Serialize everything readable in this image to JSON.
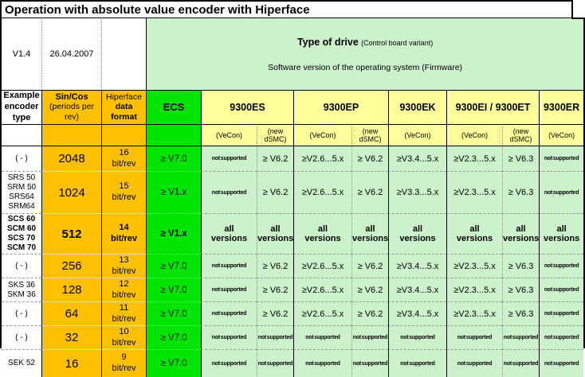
{
  "title": "Operation with absolute value encoder with Hiperface",
  "meta": {
    "version": "V1.4",
    "date": "26.04.2007"
  },
  "drive_header": {
    "title": "Type of drive",
    "variant": "(Control board variant)",
    "firmware": "Software version of the operating system (Firmware)"
  },
  "columns": {
    "encoder": "Example\nencoder\ntype",
    "sincos_title": "Sin/Cos",
    "sincos_sub": "(periods per\nrev)",
    "hiperface_title": "Hiperface",
    "hiperface_sub": "data\nformat"
  },
  "drives": [
    {
      "label": "ECS"
    },
    {
      "label": "9300ES"
    },
    {
      "label": "9300EP"
    },
    {
      "label": "9300EK"
    },
    {
      "label": "9300EI / 9300ET"
    },
    {
      "label": "9300ER"
    }
  ],
  "subheads": [
    "(VeCon)",
    "(new\ndSMC)",
    "(VeCon)",
    "(new\ndSMC)",
    "(VeCon)",
    "(VeCon)",
    "(new\ndSMC)",
    "(VeCon)"
  ],
  "labels": {
    "not_supported": "not supported",
    "all_versions": "all\nversions"
  },
  "colors": {
    "orange": "#FFC000",
    "bright_green": "#00E400",
    "pale_yellow": "#FFFF9C",
    "pale_green": "#CCF2CC"
  },
  "rows": [
    {
      "encoder": "( - )",
      "periods": "2048",
      "format": "16\nbit/rev",
      "bold": false,
      "values": [
        "≥ V7.0",
        "not supported",
        "≥ V6.2",
        "≥V2.6...5.x",
        "≥ V6.2",
        "≥V3.4...5.x",
        "≥V2.3...5.x",
        "≥ V6.3",
        "not supported"
      ]
    },
    {
      "encoder": "SRS 50\nSRM 50\nSRS64\nSRM64",
      "periods": "1024",
      "format": "15\nbit/rev",
      "bold": false,
      "values": [
        "≥ V1.x",
        "not supported",
        "≥ V6.2",
        "≥V2.6...5.x",
        "≥ V6.2",
        "≥V3.3...5.x",
        "≥V2.3...5.x",
        "≥ V6.3",
        "not supported"
      ]
    },
    {
      "encoder": "SCS 60\nSCM 60\nSCS 70\nSCM 70",
      "periods": "512",
      "format": "14\nbit/rev",
      "bold": true,
      "values": [
        "≥ V1.x",
        "all\nversions",
        "all\nversions",
        "all\nversions",
        "all\nversions",
        "all\nversions",
        "all\nversions",
        "all\nversions",
        "all\nversions"
      ]
    },
    {
      "encoder": "( - )",
      "periods": "256",
      "format": "13\nbit/rev",
      "bold": false,
      "values": [
        "≥ V7.0",
        "not supported",
        "≥ V6.2",
        "≥V2.6...5.x",
        "≥ V6.2",
        "≥V3.4...5.x",
        "≥V2.3...5.x",
        "≥ V6.3",
        "not supported"
      ]
    },
    {
      "encoder": "SKS 36\nSKM 36",
      "periods": "128",
      "format": "12\nbit/rev",
      "bold": false,
      "values": [
        "≥ V7.0",
        "not supported",
        "≥ V6.2",
        "≥V2.6...5.x",
        "≥ V6.2",
        "≥V3.4...5.x",
        "≥V2.3...5.x",
        "≥ V6.3",
        "not supported"
      ]
    },
    {
      "encoder": "( - )",
      "periods": "64",
      "format": "11\nbit/rev",
      "bold": false,
      "values": [
        "≥ V7.0",
        "not supported",
        "≥ V6.2",
        "≥V2.6...5.x",
        "≥ V6.2",
        "≥V3.4...5.x",
        "≥V2.3...5.x",
        "≥ V6.3",
        "not supported"
      ]
    },
    {
      "encoder": "( - )",
      "periods": "32",
      "format": "10\nbit/rev",
      "bold": false,
      "values": [
        "≥ V7.0",
        "not supported",
        "not supported",
        "not supported",
        "not supported",
        "not supported",
        "not supported",
        "not supported",
        "not supported"
      ]
    },
    {
      "encoder": "SEK 52",
      "periods": "16",
      "format": "9\nbit/rev",
      "bold": false,
      "values": [
        "≥ V7.0",
        "not supported",
        "not supported",
        "not supported",
        "not supported",
        "not supported",
        "not supported",
        "not supported",
        "not supported"
      ]
    }
  ]
}
